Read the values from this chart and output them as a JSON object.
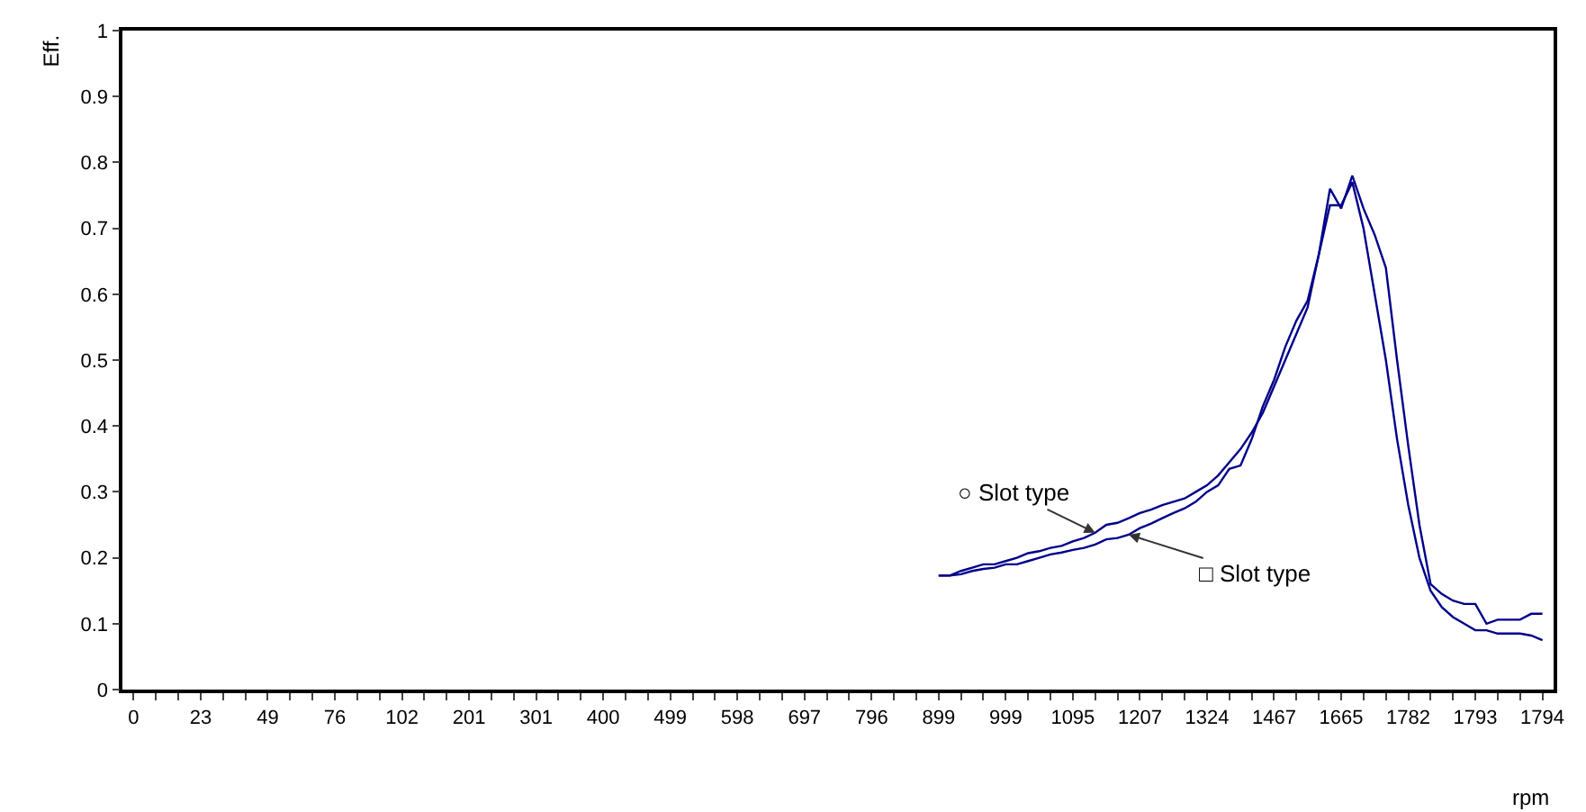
{
  "chart_data": {
    "type": "line",
    "xlabel": "rpm",
    "ylabel": "Eff.",
    "categories": [
      "0",
      null,
      null,
      null,
      null,
      null,
      "23",
      null,
      null,
      null,
      null,
      null,
      "49",
      null,
      null,
      null,
      null,
      null,
      "76",
      null,
      null,
      null,
      null,
      null,
      "102",
      null,
      null,
      null,
      null,
      null,
      "201",
      null,
      null,
      null,
      null,
      null,
      "301",
      null,
      null,
      null,
      null,
      null,
      "400",
      null,
      null,
      null,
      null,
      null,
      "499",
      null,
      null,
      null,
      null,
      null,
      "598",
      null,
      null,
      null,
      null,
      null,
      "697",
      null,
      null,
      null,
      null,
      null,
      "796",
      null,
      null,
      null,
      null,
      null,
      "899",
      null,
      null,
      null,
      null,
      null,
      "999",
      null,
      null,
      null,
      null,
      null,
      "1095",
      null,
      null,
      null,
      null,
      null,
      "1207",
      null,
      null,
      null,
      null,
      null,
      "1324",
      null,
      null,
      null,
      null,
      null,
      "1467",
      null,
      null,
      null,
      null,
      null,
      "1665",
      null,
      null,
      null,
      null,
      null,
      "1782",
      null,
      null,
      null,
      null,
      null,
      "1793",
      null,
      null,
      null,
      null,
      null,
      "1794"
    ],
    "series": [
      {
        "name": "○ Slot type",
        "color": "#00008b",
        "values": [
          null,
          null,
          null,
          null,
          null,
          null,
          null,
          null,
          null,
          null,
          null,
          null,
          null,
          null,
          null,
          null,
          null,
          null,
          null,
          null,
          null,
          null,
          null,
          null,
          null,
          null,
          null,
          null,
          null,
          null,
          null,
          null,
          null,
          null,
          null,
          null,
          null,
          null,
          null,
          null,
          null,
          null,
          null,
          null,
          null,
          null,
          null,
          null,
          null,
          null,
          null,
          null,
          null,
          null,
          null,
          null,
          null,
          null,
          null,
          null,
          null,
          null,
          null,
          null,
          null,
          null,
          null,
          null,
          null,
          null,
          null,
          null,
          0.173,
          0.173,
          0.18,
          0.185,
          0.19,
          0.19,
          0.195,
          0.2,
          0.207,
          0.21,
          0.215,
          0.218,
          0.225,
          0.23,
          0.238,
          0.25,
          0.253,
          0.26,
          0.268,
          0.273,
          0.28,
          0.285,
          0.29,
          0.3,
          0.31,
          0.325,
          0.345,
          0.365,
          0.39,
          0.42,
          0.46,
          0.5,
          0.54,
          0.58,
          0.66,
          0.76,
          0.73,
          0.78,
          0.73,
          0.69,
          0.64,
          0.5,
          0.37,
          0.25,
          0.16,
          0.145,
          0.135,
          0.13,
          0.13,
          0.1,
          0.106,
          0.106,
          0.106,
          0.115,
          0.115
        ]
      },
      {
        "name": "□ Slot type",
        "color": "#00008b",
        "values": [
          null,
          null,
          null,
          null,
          null,
          null,
          null,
          null,
          null,
          null,
          null,
          null,
          null,
          null,
          null,
          null,
          null,
          null,
          null,
          null,
          null,
          null,
          null,
          null,
          null,
          null,
          null,
          null,
          null,
          null,
          null,
          null,
          null,
          null,
          null,
          null,
          null,
          null,
          null,
          null,
          null,
          null,
          null,
          null,
          null,
          null,
          null,
          null,
          null,
          null,
          null,
          null,
          null,
          null,
          null,
          null,
          null,
          null,
          null,
          null,
          null,
          null,
          null,
          null,
          null,
          null,
          null,
          null,
          null,
          null,
          null,
          null,
          0.173,
          0.173,
          0.175,
          0.18,
          0.183,
          0.185,
          0.19,
          0.19,
          0.195,
          0.2,
          0.205,
          0.208,
          0.212,
          0.215,
          0.22,
          0.228,
          0.23,
          0.235,
          0.245,
          0.252,
          0.26,
          0.268,
          0.275,
          0.285,
          0.3,
          0.31,
          0.335,
          0.34,
          0.38,
          0.43,
          0.47,
          0.52,
          0.56,
          0.59,
          0.66,
          0.735,
          0.735,
          0.77,
          0.7,
          0.6,
          0.5,
          0.38,
          0.28,
          0.2,
          0.15,
          0.125,
          0.11,
          0.1,
          0.09,
          0.09,
          0.085,
          0.085,
          0.085,
          0.082,
          0.075
        ]
      }
    ],
    "ylim": [
      0,
      1
    ],
    "yticks": [
      0,
      0.1,
      0.2,
      0.3,
      0.4,
      0.5,
      0.6,
      0.7,
      0.8,
      0.9,
      1
    ],
    "legend": false,
    "marker": "none",
    "line_style": "solid"
  }
}
